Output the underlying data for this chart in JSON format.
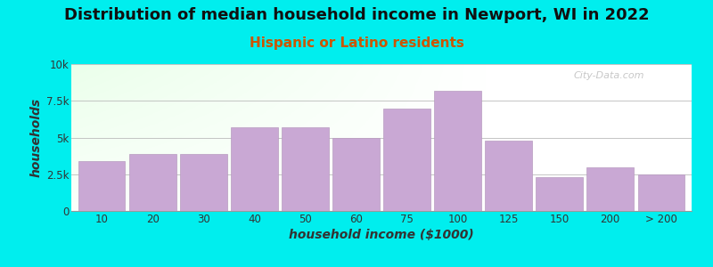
{
  "title": "Distribution of median household income in Newport, WI in 2022",
  "subtitle": "Hispanic or Latino residents",
  "xlabel": "household income ($1000)",
  "ylabel": "households",
  "background_outer": "#00EEEE",
  "bar_color": "#C9A8D4",
  "bar_edge_color": "#B89CC0",
  "categories": [
    "10",
    "20",
    "30",
    "40",
    "50",
    "60",
    "75",
    "100",
    "125",
    "150",
    "200",
    "> 200"
  ],
  "values": [
    3400,
    3900,
    3900,
    5700,
    5700,
    5000,
    7000,
    8200,
    4800,
    2300,
    3000,
    2500
  ],
  "ylim": [
    0,
    10000
  ],
  "yticks": [
    0,
    2500,
    5000,
    7500,
    10000
  ],
  "ytick_labels": [
    "0",
    "2.5k",
    "5k",
    "7.5k",
    "10k"
  ],
  "watermark": "City-Data.com",
  "title_fontsize": 13,
  "subtitle_fontsize": 11,
  "axis_label_fontsize": 10,
  "subtitle_color": "#CC5500",
  "title_color": "#111111"
}
